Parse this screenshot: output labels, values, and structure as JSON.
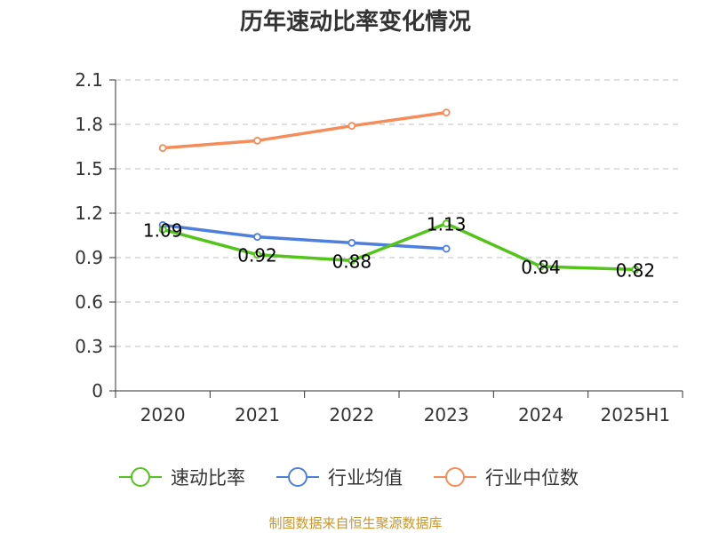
{
  "chart_data": {
    "type": "line",
    "title": "历年速动比率变化情况",
    "categories": [
      "2020",
      "2021",
      "2022",
      "2023",
      "2024",
      "2025H1"
    ],
    "ylim": [
      0,
      2.1
    ],
    "yticks": [
      "0",
      "0.3",
      "0.6",
      "0.9",
      "1.2",
      "1.5",
      "1.8",
      "2.1"
    ],
    "grid": true,
    "legend_position": "bottom",
    "series": [
      {
        "name": "速动比率",
        "color": "#52c41a",
        "values": [
          1.09,
          0.92,
          0.88,
          1.13,
          0.84,
          0.82
        ],
        "labels": [
          "1.09",
          "0.92",
          "0.88",
          "1.13",
          "0.84",
          "0.82"
        ]
      },
      {
        "name": "行业均值",
        "color": "#4f7fdc",
        "values": [
          1.12,
          1.04,
          1.0,
          0.96,
          null,
          null
        ]
      },
      {
        "name": "行业中位数",
        "color": "#f58d5a",
        "values": [
          1.64,
          1.69,
          1.79,
          1.88,
          null,
          null
        ]
      }
    ]
  },
  "footer": "制图数据来自恒生聚源数据库"
}
